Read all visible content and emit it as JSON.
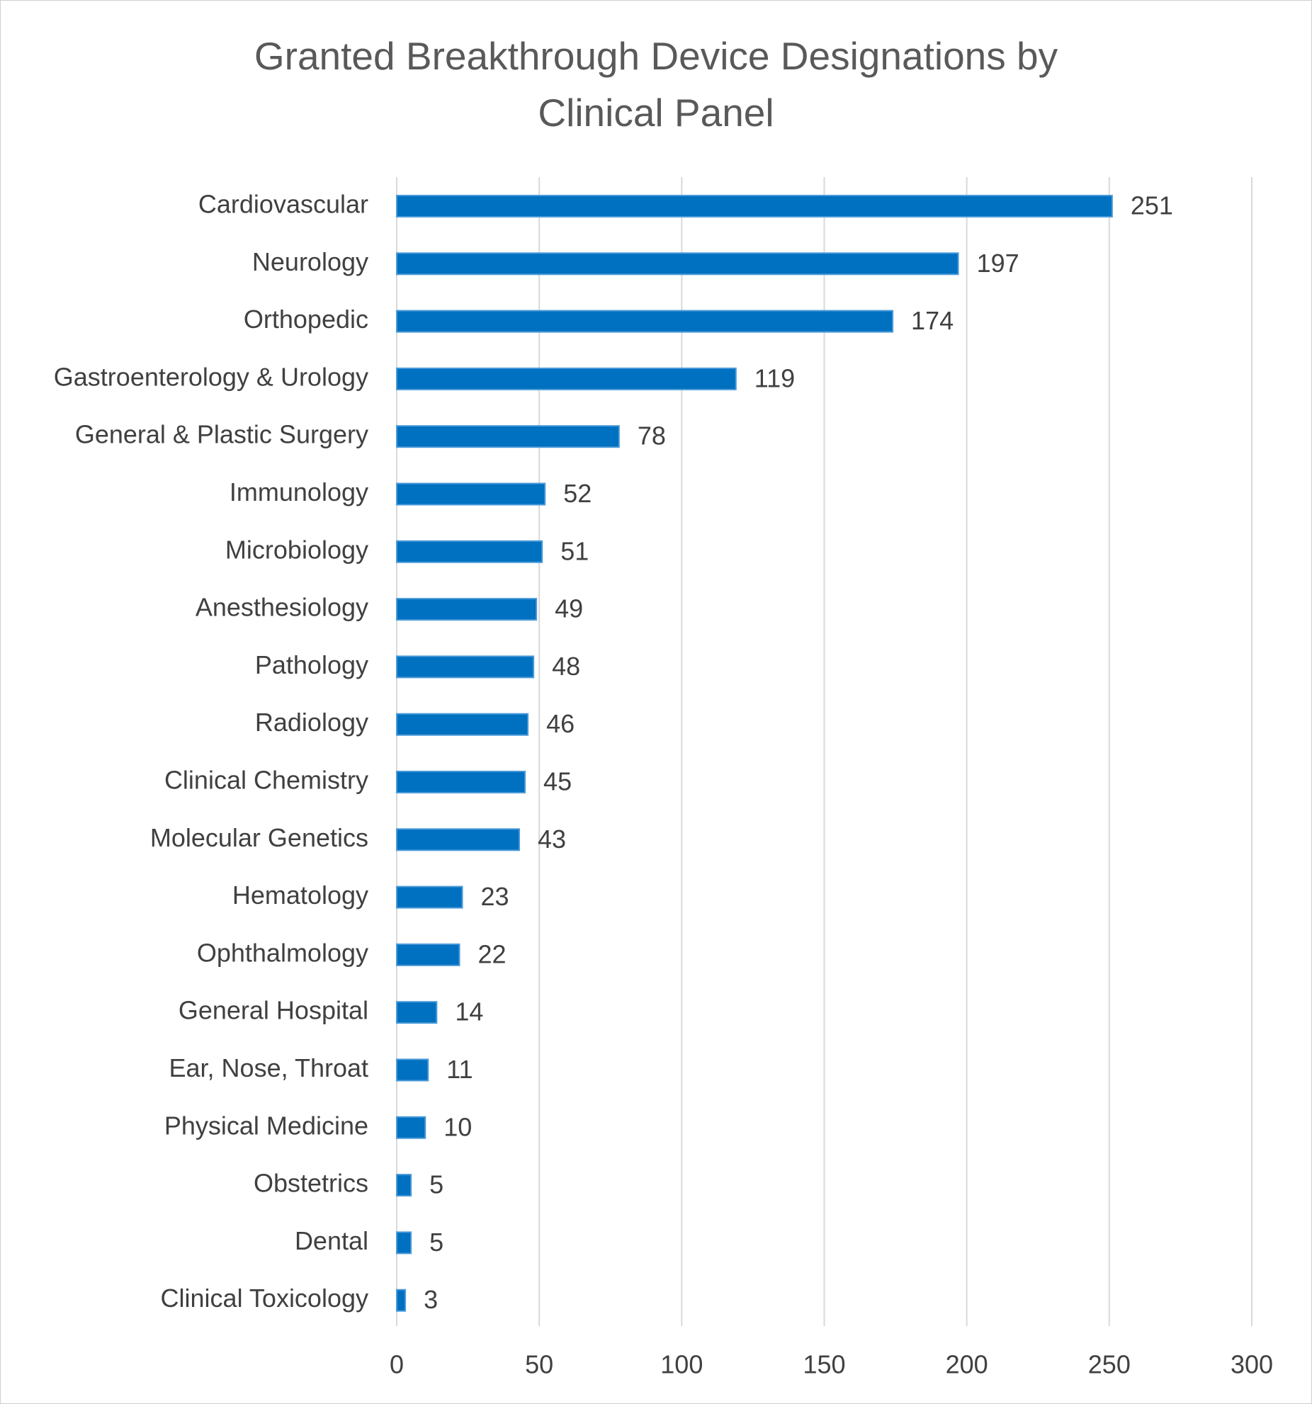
{
  "chart_data": {
    "type": "bar",
    "orientation": "horizontal",
    "title": "Granted Breakthrough Device Designations by Clinical Panel",
    "categories": [
      "Cardiovascular",
      "Neurology",
      "Orthopedic",
      "Gastroenterology & Urology",
      "General & Plastic Surgery",
      "Immunology",
      "Microbiology",
      "Anesthesiology",
      "Pathology",
      "Radiology",
      "Clinical Chemistry",
      "Molecular Genetics",
      "Hematology",
      "Ophthalmology",
      "General Hospital",
      "Ear, Nose, Throat",
      "Physical Medicine",
      "Obstetrics",
      "Dental",
      "Clinical Toxicology"
    ],
    "values": [
      251,
      197,
      174,
      119,
      78,
      52,
      51,
      49,
      48,
      46,
      45,
      43,
      23,
      22,
      14,
      11,
      10,
      5,
      5,
      3
    ],
    "color": "#0070c0",
    "xlim": [
      0,
      300
    ],
    "xticks": [
      0,
      50,
      100,
      150,
      200,
      250,
      300
    ],
    "grid": true
  }
}
